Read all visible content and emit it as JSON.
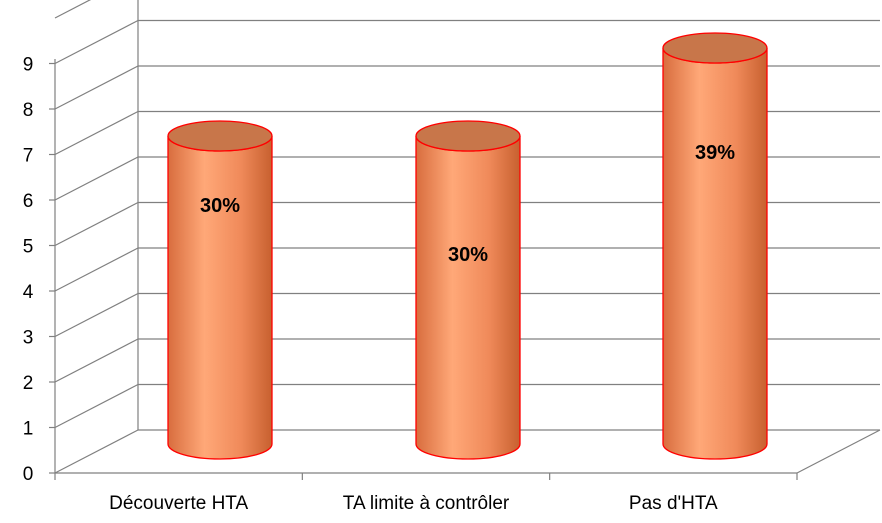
{
  "chart_data": {
    "type": "bar",
    "categories": [
      "Découverte HTA",
      "TA limite à contrôler",
      "Pas d'HTA"
    ],
    "values": [
      7,
      7,
      9
    ],
    "data_labels": [
      "30%",
      "30%",
      "39%"
    ],
    "ylim": [
      0,
      10
    ],
    "y_ticks": [
      "0",
      "1",
      "2",
      "3",
      "4",
      "5",
      "6",
      "7",
      "8",
      "9"
    ],
    "grid": true,
    "legend": "none",
    "style": "3d-cylinder",
    "colors": {
      "bar": "#f08c5e",
      "bar_edge": "#ff0000",
      "top": "#c8764a",
      "grid": "#808080"
    }
  }
}
